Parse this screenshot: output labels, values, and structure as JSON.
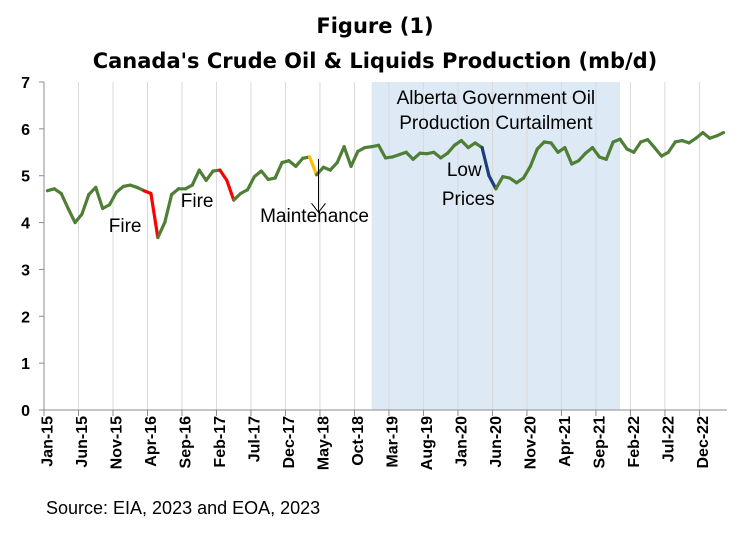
{
  "chart_data": {
    "type": "line",
    "title": "Figure (1)",
    "subtitle": "Canada's Crude Oil & Liquids Production (mb/d)",
    "source": "Source: EIA, 2023 and EOA, 2023",
    "ylim": [
      0,
      7
    ],
    "y_ticks": [
      "0",
      "1",
      "2",
      "3",
      "4",
      "5",
      "6",
      "7"
    ],
    "x_start": "Jan-15",
    "x_tick_labels": [
      "Jan-15",
      "Jun-15",
      "Nov-15",
      "Apr-16",
      "Sep-16",
      "Feb-17",
      "Jul-17",
      "Dec-17",
      "May-18",
      "Oct-18",
      "Mar-19",
      "Aug-19",
      "Jan-20",
      "Jun-20",
      "Nov-20",
      "Apr-21",
      "Sep-21",
      "Feb-22",
      "Jul-22",
      "Dec-22"
    ],
    "grid": "vertical",
    "colors": {
      "line": "#4f7f36",
      "fire": "#ff0000",
      "maintenance": "#ffc000",
      "low_prices": "#1f3d7a",
      "shade": "#dde9f5",
      "grid": "#d9d9d9"
    },
    "series": [
      {
        "x": [
          "Jan-15",
          "Feb-15",
          "Mar-15",
          "Apr-15",
          "May-15",
          "Jun-15",
          "Jul-15",
          "Aug-15",
          "Sep-15",
          "Oct-15",
          "Nov-15",
          "Dec-15",
          "Jan-16",
          "Feb-16",
          "Mar-16",
          "Apr-16",
          "May-16",
          "Jun-16",
          "Jul-16",
          "Aug-16",
          "Sep-16",
          "Oct-16",
          "Nov-16",
          "Dec-16",
          "Jan-17",
          "Feb-17",
          "Mar-17",
          "Apr-17",
          "May-17",
          "Jun-17",
          "Jul-17",
          "Aug-17",
          "Sep-17",
          "Oct-17",
          "Nov-17",
          "Dec-17",
          "Jan-18",
          "Feb-18",
          "Mar-18",
          "Apr-18",
          "May-18",
          "Jun-18",
          "Jul-18",
          "Aug-18",
          "Sep-18",
          "Oct-18",
          "Nov-18",
          "Dec-18",
          "Jan-19",
          "Feb-19",
          "Mar-19",
          "Apr-19",
          "May-19",
          "Jun-19",
          "Jul-19",
          "Aug-19",
          "Sep-19",
          "Oct-19",
          "Nov-19",
          "Dec-19",
          "Jan-20",
          "Feb-20",
          "Mar-20",
          "Apr-20",
          "May-20",
          "Jun-20",
          "Jul-20",
          "Aug-20",
          "Sep-20",
          "Oct-20",
          "Nov-20",
          "Dec-20",
          "Jan-21",
          "Feb-21",
          "Mar-21",
          "Apr-21",
          "May-21",
          "Jun-21",
          "Jul-21",
          "Aug-21",
          "Sep-21",
          "Oct-21",
          "Nov-21",
          "Dec-21",
          "Jan-22",
          "Feb-22",
          "Mar-22",
          "Apr-22",
          "May-22",
          "Jun-22",
          "Jul-22",
          "Aug-22",
          "Sep-22",
          "Oct-22",
          "Nov-22",
          "Dec-22",
          "Jan-23",
          "Feb-23",
          "Mar-23"
        ],
        "values": [
          4.68,
          4.72,
          4.62,
          4.3,
          4.0,
          4.18,
          4.6,
          4.75,
          4.3,
          4.38,
          4.65,
          4.77,
          4.8,
          4.75,
          4.68,
          4.62,
          3.68,
          4.0,
          4.6,
          4.72,
          4.72,
          4.8,
          5.12,
          4.9,
          5.1,
          5.12,
          4.9,
          4.48,
          4.62,
          4.7,
          4.98,
          5.1,
          4.92,
          4.95,
          5.28,
          5.32,
          5.2,
          5.37,
          5.4,
          5.02,
          5.18,
          5.12,
          5.28,
          5.62,
          5.2,
          5.52,
          5.6,
          5.62,
          5.65,
          5.38,
          5.4,
          5.45,
          5.5,
          5.35,
          5.48,
          5.47,
          5.5,
          5.38,
          5.48,
          5.65,
          5.75,
          5.6,
          5.7,
          5.6,
          5.0,
          4.72,
          4.98,
          4.95,
          4.85,
          4.95,
          5.2,
          5.57,
          5.72,
          5.7,
          5.5,
          5.6,
          5.25,
          5.32,
          5.48,
          5.6,
          5.4,
          5.35,
          5.72,
          5.78,
          5.57,
          5.5,
          5.72,
          5.77,
          5.6,
          5.42,
          5.5,
          5.72,
          5.75,
          5.7,
          5.8,
          5.92,
          5.8,
          5.85,
          5.92
        ]
      }
    ],
    "highlights": [
      {
        "from": 14,
        "to": 16,
        "color": "fire"
      },
      {
        "from": 25,
        "to": 27,
        "color": "fire"
      },
      {
        "from": 38,
        "to": 39,
        "color": "maintenance"
      },
      {
        "from": 63,
        "to": 65,
        "color": "low_prices"
      }
    ],
    "shaded_region": {
      "from": "Dec-18",
      "to": "Dec-21",
      "label_lines": [
        "Alberta Government Oil",
        "Production Curtailment"
      ]
    },
    "annotations": [
      {
        "text": "Fire",
        "at": "Feb-16"
      },
      {
        "text": "Fire",
        "at": "Dec-16"
      },
      {
        "text": "Maintenance",
        "at": "Apr-18",
        "arrow": true
      },
      {
        "text_lines": [
          "Low",
          "Prices"
        ],
        "at": "Feb-20"
      }
    ]
  }
}
